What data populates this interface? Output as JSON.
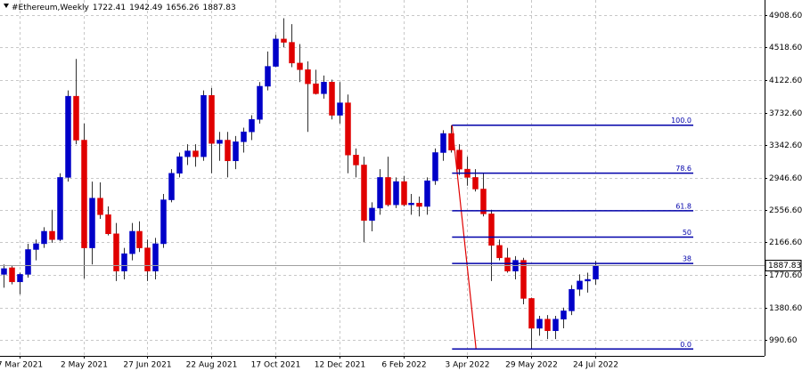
{
  "chart_data": {
    "type": "candlestick",
    "title": "#Ethereum,Weekly",
    "categories": [
      null,
      null,
      "7 Mar 2021",
      null,
      null,
      null,
      null,
      null,
      null,
      null,
      "2 May 2021",
      null,
      null,
      null,
      null,
      null,
      null,
      null,
      "27 Jun 2021",
      null,
      null,
      null,
      null,
      null,
      null,
      null,
      "22 Aug 2021",
      null,
      null,
      null,
      null,
      null,
      null,
      null,
      "17 Oct 2021",
      null,
      null,
      null,
      null,
      null,
      null,
      null,
      "12 Dec 2021",
      null,
      null,
      null,
      null,
      null,
      null,
      null,
      "6 Feb 2022",
      null,
      null,
      null,
      null,
      null,
      null,
      null,
      "3 Apr 2022",
      null,
      null,
      null,
      null,
      null,
      null,
      null,
      "29 May 2022",
      null,
      null,
      null,
      null,
      null,
      null,
      null,
      "24 Jul 2022"
    ],
    "open": [
      1780,
      1860,
      1690,
      1780,
      2080,
      2150,
      2300,
      2200,
      2950,
      3930,
      3400,
      2100,
      2700,
      2500,
      2270,
      1820,
      2030,
      2300,
      2100,
      1820,
      2150,
      2680,
      3000,
      3200,
      3270,
      3200,
      3940,
      3360,
      3400,
      3150,
      3380,
      3500,
      3650,
      4050,
      4290,
      4620,
      4580,
      4330,
      4250,
      4080,
      3960,
      4100,
      3700,
      3850,
      3220,
      3100,
      2430,
      2580,
      2950,
      2620,
      2900,
      2620,
      2640,
      2600,
      2910,
      3250,
      3480,
      3280,
      3050,
      2950,
      2810,
      2510,
      2130,
      1980,
      1820,
      1950,
      1490,
      1130,
      1240,
      1100,
      1240,
      1340,
      1600,
      1700,
      1722.41
    ],
    "high": [
      1900,
      1880,
      1800,
      2150,
      2200,
      2350,
      2560,
      3000,
      4000,
      4380,
      3600,
      2900,
      2890,
      2600,
      2400,
      2100,
      2400,
      2420,
      2200,
      2220,
      2750,
      3050,
      3250,
      3350,
      3350,
      4000,
      4030,
      3500,
      3500,
      3450,
      3550,
      3700,
      4100,
      4470,
      4670,
      4870,
      4800,
      4560,
      4350,
      4250,
      4180,
      4130,
      4100,
      3950,
      3300,
      3200,
      2650,
      3050,
      3200,
      2950,
      2970,
      2750,
      2720,
      2950,
      3300,
      3520,
      3580,
      3350,
      3200,
      3050,
      3000,
      2560,
      2200,
      2100,
      2000,
      1980,
      1500,
      1280,
      1290,
      1280,
      1380,
      1650,
      1780,
      1800,
      1942.49
    ],
    "low": [
      1620,
      1660,
      1540,
      1740,
      1950,
      2100,
      2160,
      2180,
      2900,
      3350,
      1730,
      1900,
      2450,
      2250,
      1700,
      1720,
      1950,
      2050,
      1700,
      1720,
      2100,
      2650,
      2950,
      3100,
      3080,
      3150,
      3000,
      3150,
      2950,
      3050,
      3250,
      3400,
      3600,
      4000,
      4280,
      4520,
      4280,
      4100,
      3500,
      3950,
      3900,
      3650,
      3600,
      3000,
      2950,
      2170,
      2300,
      2500,
      2600,
      2580,
      2600,
      2500,
      2480,
      2500,
      2860,
      3150,
      3250,
      2980,
      2850,
      2780,
      2480,
      1700,
      1950,
      1800,
      1720,
      1420,
      880,
      1040,
      1000,
      1000,
      1130,
      1290,
      1520,
      1560,
      1656.26
    ],
    "close": [
      1850,
      1690,
      1780,
      2080,
      2150,
      2300,
      2200,
      2950,
      3930,
      3400,
      2100,
      2700,
      2500,
      2270,
      1820,
      2030,
      2300,
      2100,
      1820,
      2150,
      2680,
      3000,
      3200,
      3270,
      3200,
      3940,
      3360,
      3400,
      3150,
      3380,
      3500,
      3650,
      4050,
      4290,
      4620,
      4580,
      4330,
      4250,
      4080,
      3960,
      4100,
      3700,
      3850,
      3220,
      3100,
      2430,
      2580,
      2950,
      2620,
      2900,
      2620,
      2640,
      2600,
      2910,
      3250,
      3480,
      3280,
      3050,
      2950,
      2810,
      2510,
      2130,
      1980,
      1820,
      1950,
      1490,
      1130,
      1240,
      1100,
      1240,
      1340,
      1600,
      1700,
      1720,
      1887.83
    ],
    "colors": {
      "up": "#0000c8",
      "down": "#e00000",
      "wick": "#303030",
      "fibonacci": "#0000aa",
      "trendline": "#e00000"
    },
    "ylim": [
      797,
      5037
    ],
    "yticks": [
      {
        "value": 990.6,
        "label": "990.60"
      },
      {
        "value": 1380.6,
        "label": "1380.60"
      },
      {
        "value": 1770.6,
        "label": "1770.60"
      },
      {
        "value": 2166.6,
        "label": "2166.60"
      },
      {
        "value": 2556.6,
        "label": "2556.60"
      },
      {
        "value": 2946.6,
        "label": "2946.60"
      },
      {
        "value": 3342.6,
        "label": "3342.60"
      },
      {
        "value": 3732.6,
        "label": "3732.60"
      },
      {
        "value": 4122.6,
        "label": "4122.60"
      },
      {
        "value": 4518.6,
        "label": "4518.60"
      },
      {
        "value": 4908.6,
        "label": "4908.60"
      }
    ],
    "grid": true,
    "fibonacci": {
      "high": 3580,
      "low": 880,
      "levels": [
        {
          "value": 100,
          "label": "100.0"
        },
        {
          "value": 78.6,
          "label": "78.6"
        },
        {
          "value": 61.8,
          "label": "61.8"
        },
        {
          "value": 50,
          "label": "50"
        },
        {
          "value": 38.2,
          "label": "38"
        },
        {
          "value": 0,
          "label": "0.0"
        }
      ]
    }
  }
}
